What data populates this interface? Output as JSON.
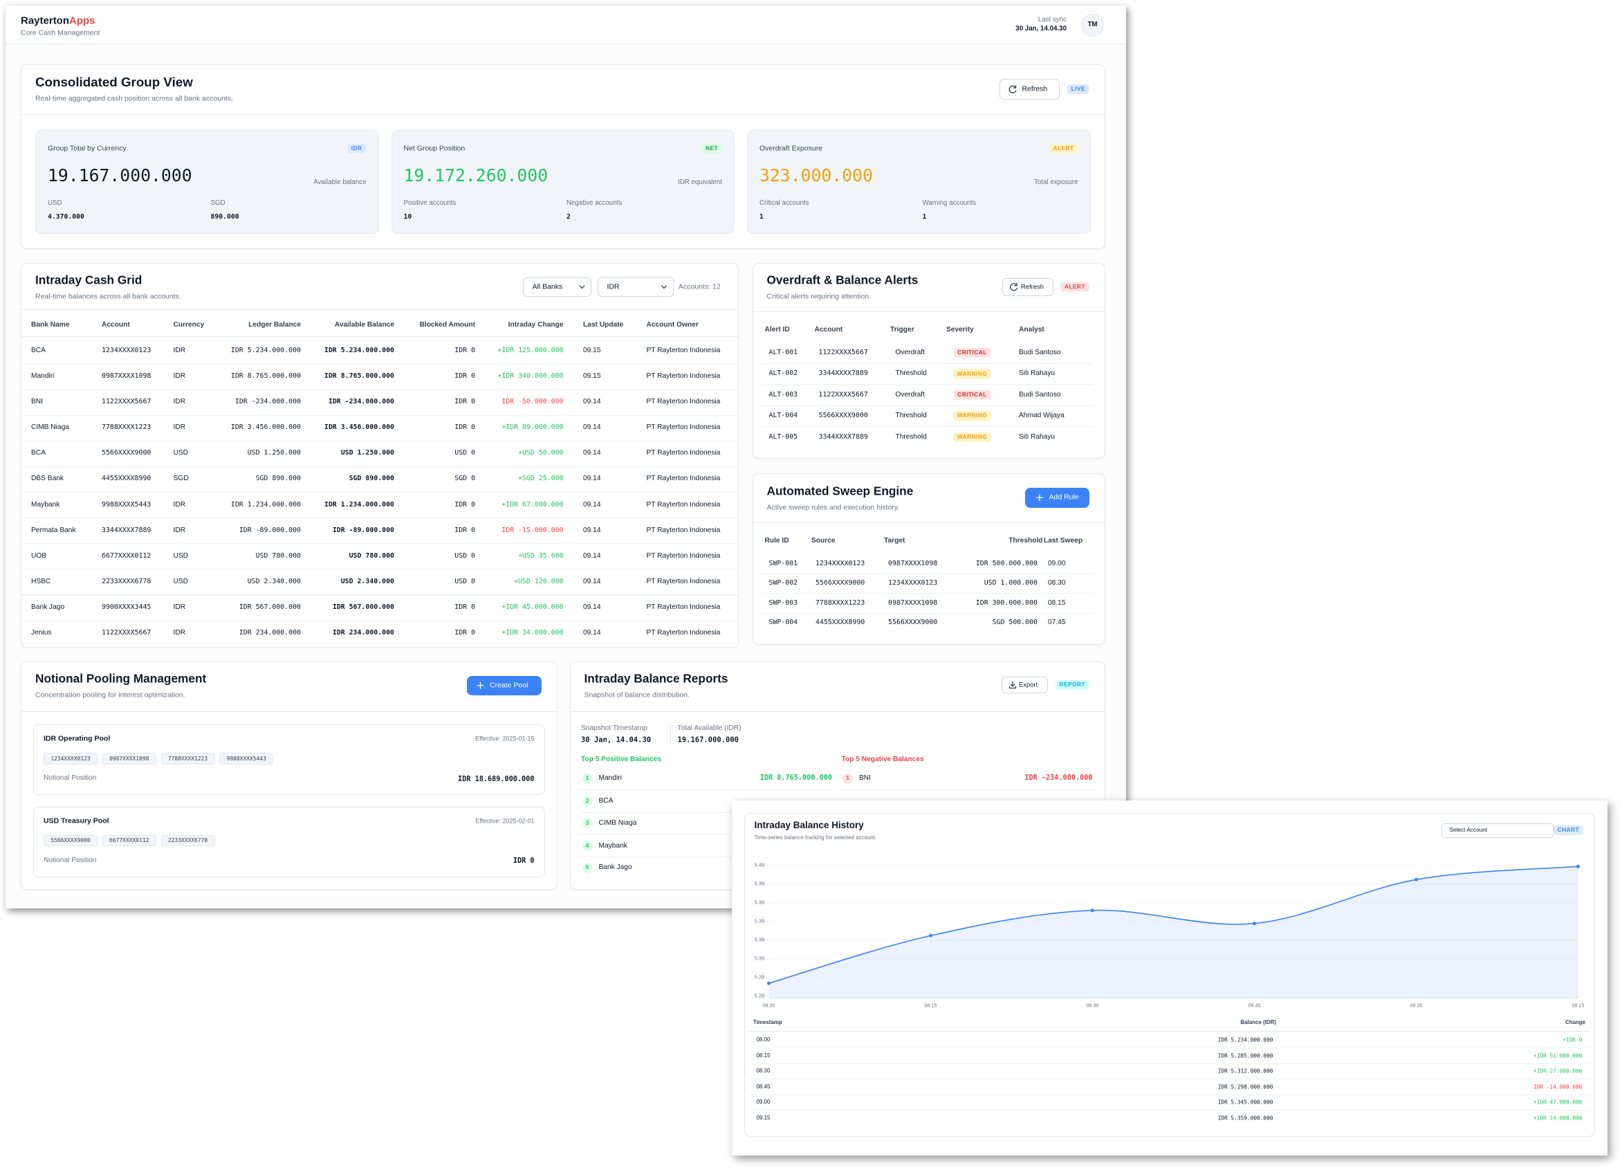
{
  "header": {
    "brand": "Rayterton",
    "brand_accent": "Apps",
    "subtitle": "Core Cash Management",
    "sync_label": "Last sync",
    "sync_time": "30 Jan, 14.04.30",
    "avatar": "TM"
  },
  "consolidated": {
    "title": "Consolidated Group View",
    "subtitle": "Real-time aggregated cash position across all bank accounts.",
    "refresh": "Refresh",
    "badge": "LIVE",
    "cards": [
      {
        "label": "Group Total by Currency",
        "badge": "IDR",
        "value": "19.167.000.000",
        "note": "Available balance",
        "stats": [
          {
            "label": "USD",
            "value": "4.370.000"
          },
          {
            "label": "SGD",
            "value": "890.000"
          }
        ]
      },
      {
        "label": "Net Group Position",
        "badge": "NET",
        "value": "19.172.260.000",
        "note": "IDR equivalent",
        "stats": [
          {
            "label": "Positive accounts",
            "value": "10"
          },
          {
            "label": "Negative accounts",
            "value": "2"
          }
        ]
      },
      {
        "label": "Overdraft Exposure",
        "badge": "ALERT",
        "value": "323.000.000",
        "note": "Total exposure",
        "stats": [
          {
            "label": "Critical accounts",
            "value": "1"
          },
          {
            "label": "Warning accounts",
            "value": "1"
          }
        ]
      }
    ]
  },
  "cash_grid": {
    "title": "Intraday Cash Grid",
    "subtitle": "Real-time balances across all bank accounts.",
    "filters": [
      "All Banks",
      "IDR"
    ],
    "count": "Accounts: 12",
    "columns": [
      "Bank Name",
      "Account",
      "Currency",
      "Ledger Balance",
      "Available Balance",
      "Blocked Amount",
      "Intraday Change",
      "Last Update",
      "Account Owner"
    ],
    "rows": [
      [
        "BCA",
        "1234XXXX0123",
        "IDR",
        "IDR 5.234.000.000",
        "IDR 5.234.000.000",
        "IDR 0",
        "+IDR 125.000.000",
        "09.15",
        "PT Rayterton Indonesia"
      ],
      [
        "Mandiri",
        "0987XXXX1098",
        "IDR",
        "IDR 8.765.000.000",
        "IDR 8.765.000.000",
        "IDR 0",
        "+IDR 340.000.000",
        "09.15",
        "PT Rayterton Indonesia"
      ],
      [
        "BNI",
        "1122XXXX5667",
        "IDR",
        "IDR -234.000.000",
        "IDR -234.000.000",
        "IDR 0",
        "IDR -50.000.000",
        "09.14",
        "PT Rayterton Indonesia"
      ],
      [
        "CIMB Niaga",
        "7788XXXX1223",
        "IDR",
        "IDR 3.456.000.000",
        "IDR 3.456.000.000",
        "IDR 0",
        "+IDR 89.000.000",
        "09.14",
        "PT Rayterton Indonesia"
      ],
      [
        "BCA",
        "5566XXXX9000",
        "USD",
        "USD 1.250.000",
        "USD 1.250.000",
        "USD 0",
        "+USD 50.000",
        "09.14",
        "PT Rayterton Indonesia"
      ],
      [
        "DBS Bank",
        "4455XXXX8990",
        "SGD",
        "SGD 890.000",
        "SGD 890.000",
        "SGD 0",
        "+SGD 25.000",
        "09.14",
        "PT Rayterton Indonesia"
      ],
      [
        "Maybank",
        "9988XXXX5443",
        "IDR",
        "IDR 1.234.000.000",
        "IDR 1.234.000.000",
        "IDR 0",
        "+IDR 67.000.000",
        "09.14",
        "PT Rayterton Indonesia"
      ],
      [
        "Permata Bank",
        "3344XXXX7889",
        "IDR",
        "IDR -89.000.000",
        "IDR -89.000.000",
        "IDR 0",
        "IDR -15.000.000",
        "09.14",
        "PT Rayterton Indonesia"
      ],
      [
        "UOB",
        "6677XXXX0112",
        "USD",
        "USD 780.000",
        "USD 780.000",
        "USD 0",
        "+USD 35.000",
        "09.14",
        "PT Rayterton Indonesia"
      ],
      [
        "HSBC",
        "2233XXXX6778",
        "USD",
        "USD 2.340.000",
        "USD 2.340.000",
        "USD 0",
        "+USD 120.000",
        "09.14",
        "PT Rayterton Indonesia"
      ],
      [
        "Bank Jago",
        "9900XXXX3445",
        "IDR",
        "IDR 567.000.000",
        "IDR 567.000.000",
        "IDR 0",
        "+IDR 45.000.000",
        "09.14",
        "PT Rayterton Indonesia"
      ],
      [
        "Jenius",
        "1122XXXX5667",
        "IDR",
        "IDR 234.000.000",
        "IDR 234.000.000",
        "IDR 0",
        "+IDR 34.000.000",
        "09.14",
        "PT Rayterton Indonesia"
      ]
    ]
  },
  "alerts": {
    "title": "Overdraft & Balance Alerts",
    "subtitle": "Critical alerts requiring attention.",
    "refresh": "Refresh",
    "badge": "ALERT",
    "columns": [
      "Alert ID",
      "Account",
      "Trigger",
      "Severity",
      "Analyst"
    ],
    "rows": [
      [
        "ALT-001",
        "1122XXXX5667",
        "Overdraft",
        "CRITICAL",
        "Budi Santoso"
      ],
      [
        "ALT-002",
        "3344XXXX7889",
        "Threshold",
        "WARNING",
        "Siti Rahayu"
      ],
      [
        "ALT-003",
        "1122XXXX5667",
        "Overdraft",
        "CRITICAL",
        "Budi Santoso"
      ],
      [
        "ALT-004",
        "5566XXXX9000",
        "Threshold",
        "WARNING",
        "Ahmad Wijaya"
      ],
      [
        "ALT-005",
        "3344XXXX7889",
        "Threshold",
        "WARNING",
        "Siti Rahayu"
      ]
    ]
  },
  "sweep": {
    "title": "Automated Sweep Engine",
    "subtitle": "Active sweep rules and execution history.",
    "button": "Add Rule",
    "columns": [
      "Rule ID",
      "Source",
      "Target",
      "Threshold",
      "Last Sweep"
    ],
    "rows": [
      [
        "SWP-001",
        "1234XXXX0123",
        "0987XXXX1098",
        "IDR 500.000.000",
        "09.00"
      ],
      [
        "SWP-002",
        "5566XXXX9000",
        "1234XXXX0123",
        "USD 1.000.000",
        "08.30"
      ],
      [
        "SWP-003",
        "7788XXXX1223",
        "0987XXXX1098",
        "IDR 300.000.000",
        "08.15"
      ],
      [
        "SWP-004",
        "4455XXXX8990",
        "5566XXXX9000",
        "SGD 500.000",
        "07.45"
      ]
    ]
  },
  "pooling": {
    "title": "Notional Pooling Management",
    "subtitle": "Concentration pooling for interest optimization.",
    "button": "Create Pool",
    "pools": [
      {
        "name": "IDR Operating Pool",
        "effective": "Effective: 2025-01-15",
        "accounts": [
          "1234XXXX0123",
          "0987XXXX1098",
          "7788XXXX1223",
          "9988XXXX5443"
        ],
        "position_label": "Notional Position",
        "position": "IDR 18.689.000.000"
      },
      {
        "name": "USD Treasury Pool",
        "effective": "Effective: 2025-02-01",
        "accounts": [
          "5566XXXX9000",
          "6677XXXX0112",
          "2233XXXX6778"
        ],
        "position_label": "Notional Position",
        "position": "IDR 0"
      }
    ]
  },
  "reports": {
    "title": "Intraday Balance Reports",
    "subtitle": "Snapshot of balance distribution.",
    "export": "Export",
    "badge": "REPORT",
    "snapshot_label": "Snapshot Timestamp",
    "snapshot": "30 Jan, 14.04.30",
    "total_label": "Total Available (IDR)",
    "total": "19.167.000.000",
    "positive_title": "Top 5 Positive Balances",
    "positive": [
      {
        "rank": "1",
        "name": "Mandiri",
        "value": "IDR 8.765.000.000"
      },
      {
        "rank": "2",
        "name": "BCA"
      },
      {
        "rank": "3",
        "name": "CIMB Niaga"
      },
      {
        "rank": "4",
        "name": "Maybank"
      },
      {
        "rank": "5",
        "name": "Bank Jago"
      }
    ],
    "negative_title": "Top 5 Negative Balances",
    "negative": [
      {
        "rank": "1",
        "name": "BNI",
        "value": "IDR -234.000.000"
      }
    ]
  },
  "history": {
    "title": "Intraday Balance History",
    "subtitle": "Time-series balance tracking for selected account.",
    "select": "Select Account",
    "badge": "CHART",
    "columns": [
      "Timestamp",
      "Balance (IDR)",
      "Change"
    ],
    "rows": [
      [
        "08.00",
        "IDR 5.234.000.000",
        "+IDR 0"
      ],
      [
        "08.15",
        "IDR 5.285.000.000",
        "+IDR 51.000.000"
      ],
      [
        "08.30",
        "IDR 5.312.000.000",
        "+IDR 27.000.000"
      ],
      [
        "08.45",
        "IDR 5.298.000.000",
        "IDR -14.000.000"
      ],
      [
        "09.00",
        "IDR 5.345.000.000",
        "+IDR 47.000.000"
      ],
      [
        "09.15",
        "IDR 5.359.000.000",
        "+IDR 14.000.000"
      ]
    ]
  },
  "chart_data": {
    "type": "line",
    "categories": [
      "08.00",
      "08.15",
      "08.30",
      "08.45",
      "09.00",
      "09.15"
    ],
    "values": [
      5.234,
      5.285,
      5.312,
      5.298,
      5.345,
      5.359
    ],
    "color": "#3b82f6",
    "area": true,
    "smooth": true,
    "ylim": [
      5.22,
      5.36
    ],
    "yticks": [
      {
        "value": 5.22,
        "label": "5.2B"
      },
      {
        "value": 5.24,
        "label": "5.2B"
      },
      {
        "value": 5.26,
        "label": "5.3B"
      },
      {
        "value": 5.28,
        "label": "5.3B"
      },
      {
        "value": 5.3,
        "label": "5.3B"
      },
      {
        "value": 5.32,
        "label": "5.3B"
      },
      {
        "value": 5.34,
        "label": "5.3B"
      },
      {
        "value": 5.36,
        "label": "5.4B"
      }
    ]
  }
}
